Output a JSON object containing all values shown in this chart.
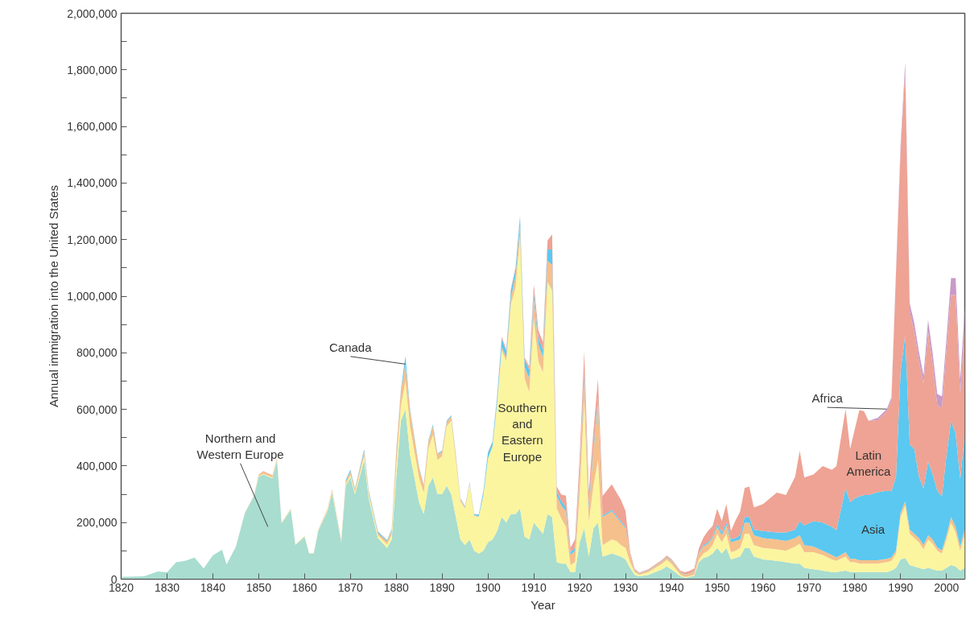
{
  "chart_data": {
    "type": "area",
    "stacked": true,
    "xlabel": "Year",
    "ylabel": "Annual immigration into the United States",
    "grid": false,
    "x": [
      1820,
      1825,
      1828,
      1830,
      1832,
      1834,
      1836,
      1838,
      1840,
      1842,
      1843,
      1845,
      1847,
      1849,
      1850,
      1851,
      1853,
      1854,
      1855,
      1857,
      1858,
      1860,
      1861,
      1862,
      1863,
      1865,
      1866,
      1868,
      1869,
      1870,
      1871,
      1873,
      1874,
      1876,
      1878,
      1879,
      1880,
      1881,
      1882,
      1883,
      1885,
      1886,
      1887,
      1888,
      1889,
      1890,
      1891,
      1892,
      1893,
      1894,
      1895,
      1896,
      1897,
      1898,
      1899,
      1900,
      1901,
      1902,
      1903,
      1904,
      1905,
      1906,
      1907,
      1908,
      1909,
      1910,
      1911,
      1912,
      1913,
      1914,
      1915,
      1916,
      1917,
      1918,
      1919,
      1920,
      1921,
      1922,
      1923,
      1924,
      1925,
      1927,
      1928,
      1929,
      1930,
      1931,
      1932,
      1933,
      1935,
      1938,
      1939,
      1940,
      1942,
      1943,
      1944,
      1945,
      1946,
      1947,
      1948,
      1949,
      1950,
      1951,
      1952,
      1953,
      1954,
      1955,
      1956,
      1957,
      1958,
      1960,
      1963,
      1965,
      1967,
      1968,
      1969,
      1971,
      1973,
      1975,
      1976,
      1978,
      1979,
      1980,
      1981,
      1982,
      1983,
      1985,
      1987,
      1988,
      1989,
      1990,
      1991,
      1992,
      1993,
      1994,
      1995,
      1996,
      1997,
      1998,
      1999,
      2000,
      2001,
      2002,
      2003,
      2004
    ],
    "xlim": [
      1820,
      2004
    ],
    "xticks": [
      1820,
      1830,
      1840,
      1850,
      1860,
      1870,
      1880,
      1890,
      1900,
      1910,
      1920,
      1930,
      1940,
      1950,
      1960,
      1970,
      1980,
      1990,
      2000
    ],
    "ylim": [
      0,
      2000000
    ],
    "yticks": [
      0,
      {
        "value": 100000,
        "label": null
      },
      {
        "value": 200000,
        "label": "200,000"
      },
      {
        "value": 300000,
        "label": null
      },
      {
        "value": 400000,
        "label": "400,000"
      },
      {
        "value": 500000,
        "label": null
      },
      {
        "value": 600000,
        "label": "600,000"
      },
      {
        "value": 700000,
        "label": null
      },
      {
        "value": 800000,
        "label": "800,000"
      },
      {
        "value": 900000,
        "label": null
      },
      {
        "value": 1000000,
        "label": "1,000,000"
      },
      {
        "value": 1100000,
        "label": null
      },
      {
        "value": 1200000,
        "label": "1,200,000"
      },
      {
        "value": 1300000,
        "label": null
      },
      {
        "value": 1400000,
        "label": "1,400,000"
      },
      {
        "value": 1500000,
        "label": null
      },
      {
        "value": 1600000,
        "label": "1,600,000"
      },
      {
        "value": 1700000,
        "label": null
      },
      {
        "value": 1800000,
        "label": "1,800,000"
      },
      {
        "value": 1900000,
        "label": null
      },
      {
        "value": 2000000,
        "label": "2,000,000"
      }
    ],
    "series": [
      {
        "name": "Northern and Western Europe",
        "color": "#a8ddd0",
        "values": [
          8000,
          10000,
          27000,
          24000,
          60000,
          65000,
          76000,
          38000,
          84000,
          104000,
          52000,
          114000,
          233000,
          295000,
          362000,
          370000,
          356000,
          418000,
          196000,
          246000,
          121000,
          150000,
          90000,
          90000,
          172000,
          240000,
          305000,
          130000,
          330000,
          360000,
          300000,
          420000,
          285000,
          145000,
          110000,
          140000,
          360000,
          560000,
          600000,
          440000,
          270000,
          230000,
          330000,
          360000,
          300000,
          300000,
          330000,
          300000,
          220000,
          140000,
          120000,
          140000,
          100000,
          90000,
          100000,
          130000,
          140000,
          170000,
          220000,
          200000,
          230000,
          230000,
          250000,
          150000,
          140000,
          200000,
          180000,
          160000,
          230000,
          220000,
          60000,
          55000,
          55000,
          25000,
          25000,
          130000,
          180000,
          80000,
          180000,
          200000,
          80000,
          90000,
          85000,
          80000,
          70000,
          40000,
          15000,
          10000,
          15000,
          35000,
          45000,
          35000,
          10000,
          5000,
          8000,
          12000,
          60000,
          75000,
          80000,
          90000,
          110000,
          90000,
          110000,
          70000,
          75000,
          80000,
          110000,
          110000,
          80000,
          70000,
          65000,
          60000,
          55000,
          55000,
          40000,
          35000,
          30000,
          25000,
          25000,
          30000,
          25000,
          25000,
          25000,
          25000,
          25000,
          25000,
          25000,
          30000,
          40000,
          70000,
          75000,
          50000,
          45000,
          40000,
          35000,
          40000,
          35000,
          30000,
          30000,
          40000,
          50000,
          45000,
          30000,
          40000
        ]
      },
      {
        "name": "Southern and Eastern Europe",
        "color": "#fbf5a0",
        "values": [
          0,
          0,
          0,
          0,
          0,
          0,
          0,
          0,
          0,
          0,
          0,
          0,
          0,
          0,
          2000,
          2000,
          3000,
          3000,
          2000,
          2000,
          1000,
          2000,
          1000,
          1000,
          2000,
          3000,
          5000,
          3000,
          6000,
          8000,
          8000,
          15000,
          12000,
          10000,
          13000,
          17000,
          40000,
          50000,
          100000,
          100000,
          85000,
          75000,
          130000,
          150000,
          120000,
          135000,
          210000,
          260000,
          200000,
          135000,
          130000,
          195000,
          123000,
          130000,
          195000,
          295000,
          328000,
          450000,
          590000,
          570000,
          740000,
          800000,
          960000,
          560000,
          520000,
          720000,
          590000,
          570000,
          820000,
          800000,
          190000,
          160000,
          130000,
          25000,
          35000,
          170000,
          450000,
          120000,
          150000,
          220000,
          40000,
          50000,
          50000,
          40000,
          40000,
          20000,
          10000,
          5000,
          10000,
          20000,
          23000,
          20000,
          5000,
          3000,
          3000,
          4000,
          10000,
          15000,
          20000,
          30000,
          50000,
          40000,
          50000,
          25000,
          25000,
          30000,
          50000,
          50000,
          40000,
          40000,
          40000,
          40000,
          60000,
          70000,
          55000,
          60000,
          55000,
          45000,
          40000,
          50000,
          35000,
          35000,
          30000,
          30000,
          30000,
          30000,
          35000,
          35000,
          50000,
          150000,
          185000,
          110000,
          100000,
          90000,
          70000,
          100000,
          90000,
          70000,
          60000,
          100000,
          150000,
          120000,
          70000,
          120000
        ]
      },
      {
        "name": "Canada",
        "color": "#f5c08c",
        "values": [
          0,
          0,
          0,
          0,
          0,
          0,
          0,
          0,
          0,
          0,
          0,
          0,
          2000,
          2000,
          5000,
          8000,
          8000,
          7000,
          2000,
          2000,
          1000,
          1000,
          1000,
          1000,
          2000,
          4000,
          7000,
          4000,
          10000,
          12000,
          9000,
          15000,
          10000,
          8000,
          10000,
          15000,
          50000,
          52000,
          60000,
          55000,
          35000,
          25000,
          25000,
          30000,
          20000,
          15000,
          15000,
          15000,
          15000,
          6000,
          4000,
          4000,
          3000,
          2000,
          2000,
          2000,
          3000,
          4000,
          10000,
          15000,
          25000,
          40000,
          40000,
          40000,
          50000,
          70000,
          60000,
          55000,
          75000,
          90000,
          45000,
          45000,
          55000,
          35000,
          40000,
          70000,
          75000,
          50000,
          120000,
          200000,
          100000,
          100000,
          85000,
          80000,
          70000,
          25000,
          5000,
          4000,
          5000,
          8000,
          8000,
          10000,
          8000,
          8000,
          8000,
          12000,
          20000,
          25000,
          25000,
          25000,
          25000,
          25000,
          30000,
          35000,
          35000,
          30000,
          40000,
          40000,
          35000,
          35000,
          35000,
          35000,
          30000,
          30000,
          25000,
          20000,
          15000,
          15000,
          12000,
          15000,
          12000,
          12000,
          12000,
          12000,
          12000,
          12000,
          12000,
          12000,
          12000,
          15000,
          15000,
          15000,
          15000,
          15000,
          15000,
          15000,
          15000,
          12000,
          12000,
          15000,
          20000,
          20000,
          15000,
          20000
        ]
      },
      {
        "name": "Asia",
        "color": "#5ac8f0",
        "values": [
          0,
          0,
          0,
          0,
          0,
          0,
          0,
          0,
          0,
          0,
          0,
          0,
          0,
          0,
          0,
          0,
          0,
          0,
          0,
          0,
          0,
          0,
          0,
          0,
          0,
          0,
          1000,
          1000,
          5000,
          6000,
          3000,
          8000,
          5000,
          5000,
          4000,
          4000,
          5000,
          6000,
          28000,
          7000,
          4000,
          3000,
          4000,
          6000,
          3000,
          4000,
          4000,
          4000,
          4000,
          3000,
          3000,
          3000,
          3000,
          6000,
          13000,
          20000,
          15000,
          20000,
          30000,
          20000,
          25000,
          25000,
          30000,
          25000,
          30000,
          25000,
          20000,
          25000,
          40000,
          55000,
          15000,
          15000,
          15000,
          10000,
          10000,
          15000,
          25000,
          15000,
          15000,
          20000,
          5000,
          5000,
          5000,
          5000,
          5000,
          3000,
          1000,
          1000,
          1000,
          2000,
          2000,
          2000,
          1000,
          1000,
          1000,
          1000,
          3000,
          5000,
          5000,
          5000,
          10000,
          10000,
          10000,
          10000,
          10000,
          15000,
          20000,
          20000,
          20000,
          25000,
          25000,
          30000,
          30000,
          50000,
          70000,
          90000,
          100000,
          100000,
          96000,
          227000,
          200000,
          213000,
          225000,
          230000,
          230000,
          240000,
          240000,
          234000,
          260000,
          500000,
          588000,
          300000,
          300000,
          218000,
          200000,
          260000,
          230000,
          200000,
          190000,
          280000,
          340000,
          330000,
          240000,
          330000
        ]
      },
      {
        "name": "Latin America",
        "color": "#eea394",
        "values": [
          0,
          0,
          0,
          0,
          0,
          0,
          0,
          0,
          0,
          0,
          0,
          0,
          0,
          0,
          1000,
          2000,
          1000,
          0,
          0,
          0,
          0,
          0,
          0,
          0,
          0,
          1000,
          0,
          0,
          1000,
          1000,
          1000,
          2000,
          1000,
          1000,
          1000,
          1000,
          2000,
          1000,
          1000,
          1000,
          1000,
          1000,
          1000,
          1000,
          1000,
          1000,
          1000,
          1000,
          1000,
          1000,
          1000,
          1000,
          1000,
          1000,
          2000,
          2000,
          2000,
          5000,
          7000,
          7000,
          6000,
          5000,
          5000,
          8000,
          12000,
          27000,
          29000,
          28000,
          32000,
          53000,
          17000,
          24000,
          40000,
          16000,
          31000,
          45000,
          75000,
          45000,
          58000,
          67000,
          69000,
          90000,
          82000,
          75000,
          56000,
          9000,
          5000,
          3000,
          4000,
          3000,
          5000,
          4000,
          5000,
          7000,
          9000,
          9000,
          16000,
          27000,
          41000,
          38000,
          54000,
          40000,
          65000,
          30000,
          63000,
          83000,
          102000,
          107000,
          78000,
          95000,
          141000,
          132000,
          187000,
          249000,
          169000,
          165000,
          200000,
          201000,
          226000,
          279000,
          188000,
          245000,
          305000,
          297000,
          263000,
          255000,
          281000,
          322000,
          719000,
          781000,
          934000,
          469000,
          414000,
          411000,
          370000,
          461000,
          388000,
          302000,
          314000,
          375000,
          444000,
          489000,
          299000,
          388000
        ]
      },
      {
        "name": "Africa",
        "color": "#c99ac8",
        "values": [
          0,
          0,
          0,
          0,
          0,
          0,
          0,
          0,
          0,
          0,
          0,
          0,
          0,
          0,
          0,
          0,
          0,
          0,
          0,
          0,
          0,
          0,
          0,
          0,
          0,
          0,
          0,
          0,
          0,
          0,
          0,
          0,
          0,
          0,
          0,
          0,
          0,
          0,
          0,
          0,
          0,
          0,
          0,
          0,
          0,
          0,
          0,
          0,
          0,
          0,
          0,
          0,
          0,
          0,
          0,
          0,
          0,
          0,
          0,
          0,
          0,
          0,
          0,
          0,
          0,
          0,
          0,
          0,
          0,
          0,
          0,
          0,
          0,
          0,
          0,
          0,
          0,
          0,
          0,
          0,
          0,
          0,
          0,
          0,
          0,
          0,
          0,
          0,
          0,
          0,
          0,
          0,
          0,
          0,
          0,
          0,
          0,
          0,
          0,
          0,
          0,
          0,
          0,
          0,
          0,
          0,
          0,
          0,
          0,
          0,
          0,
          0,
          0,
          0,
          0,
          0,
          0,
          0,
          0,
          0,
          0,
          0,
          0,
          0,
          0,
          8000,
          8000,
          10000,
          10000,
          20000,
          30000,
          30000,
          30000,
          30000,
          30000,
          40000,
          40000,
          40000,
          40000,
          40000,
          60000,
          60000,
          50000,
          60000
        ]
      }
    ]
  }
}
